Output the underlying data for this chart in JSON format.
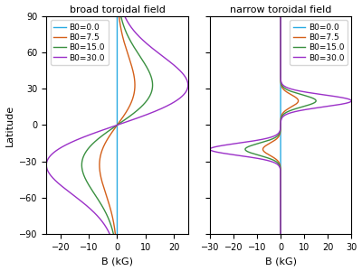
{
  "left_title": "broad toroidal field",
  "right_title": "narrow toroidal field",
  "xlabel": "B (kG)",
  "ylabel": "Latitude",
  "ylim": [
    -90,
    90
  ],
  "yticks": [
    -90,
    -60,
    -30,
    0,
    30,
    60,
    90
  ],
  "left_xlim": [
    -25,
    25
  ],
  "left_xticks": [
    -20,
    -10,
    0,
    10,
    20
  ],
  "right_xlim": [
    -30,
    30
  ],
  "right_xticks": [
    -30,
    -20,
    -10,
    0,
    10,
    20,
    30
  ],
  "B0_values": [
    0.0,
    7.5,
    15.0,
    30.0
  ],
  "colors": [
    "#29aae2",
    "#d4601a",
    "#3a9040",
    "#9b30c8"
  ],
  "labels": [
    "B0=0.0",
    "B0=7.5",
    "B0=15.0",
    "B0=30.0"
  ],
  "broad_sigma": 35,
  "broad_peak_lat": 45,
  "narrow_sigma": 5,
  "narrow_peak_lat": 20,
  "figwidth": 4.0,
  "figheight": 3.0,
  "dpi": 100
}
